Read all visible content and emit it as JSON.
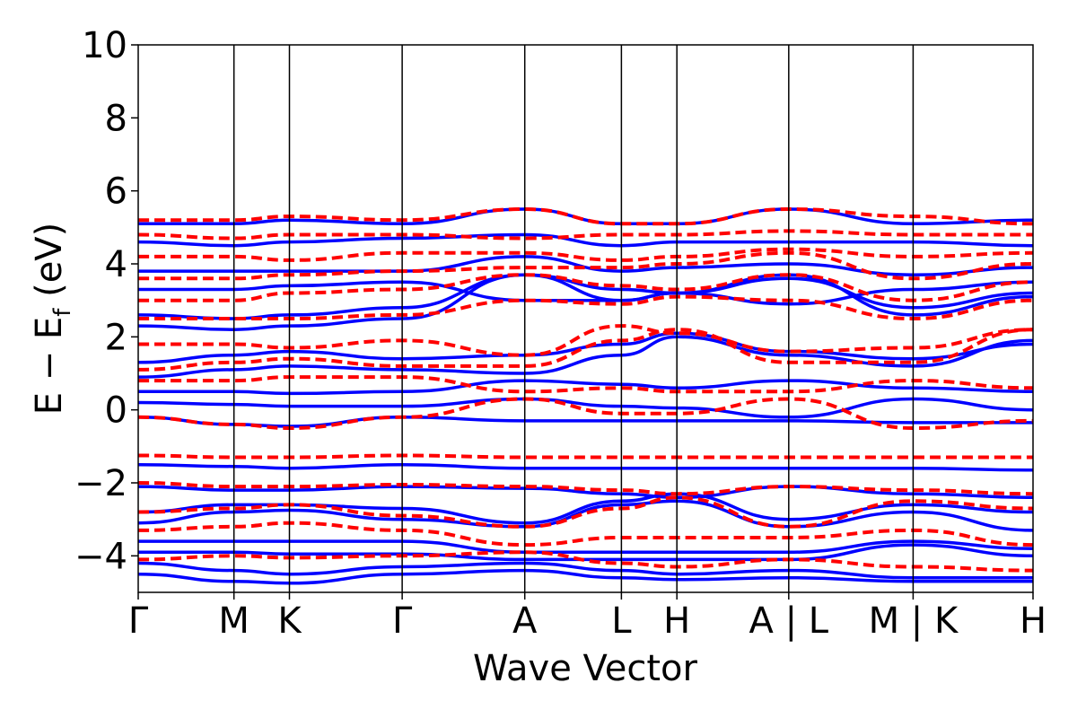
{
  "chart_data": {
    "type": "line",
    "title": "",
    "xlabel": "Wave Vector",
    "ylabel": {
      "main": "E − E",
      "sub": "f",
      "unit": " (eV)"
    },
    "ylim": [
      -5,
      10
    ],
    "yticks": [
      -4,
      -2,
      0,
      2,
      4,
      6,
      8,
      10
    ],
    "ytick_labels": [
      "−4",
      "−2",
      "0",
      "2",
      "4",
      "6",
      "8",
      "10"
    ],
    "xticks": [
      {
        "label": "Γ",
        "pos": 0.0
      },
      {
        "label": "M",
        "pos": 0.107
      },
      {
        "label": "K",
        "pos": 0.169
      },
      {
        "label": "Γ",
        "pos": 0.295
      },
      {
        "label": "A",
        "pos": 0.432
      },
      {
        "label": "L",
        "pos": 0.54
      },
      {
        "label": "H",
        "pos": 0.602
      },
      {
        "label": "A | L",
        "pos": 0.727
      },
      {
        "label": "M | K",
        "pos": 0.866
      },
      {
        "label": "H",
        "pos": 1.0
      }
    ],
    "grid": false,
    "legend": "none",
    "series_style": [
      {
        "color": "#0000ff",
        "dash": "solid"
      },
      {
        "color": "#ff0000",
        "dash": "dashed"
      }
    ],
    "series": [
      {
        "color": "#0000ff",
        "values": [
          -4.5,
          -4.7,
          -4.75,
          -4.5,
          -4.4,
          -4.6,
          -4.65,
          -4.6,
          -4.7,
          -4.7
        ]
      },
      {
        "color": "#0000ff",
        "values": [
          -4.2,
          -4.4,
          -4.5,
          -4.3,
          -4.2,
          -4.4,
          -4.5,
          -4.4,
          -4.6,
          -4.6
        ]
      },
      {
        "color": "#0000ff",
        "values": [
          -3.9,
          -3.9,
          -3.95,
          -3.95,
          -4.1,
          -4.1,
          -4.1,
          -4.1,
          -3.7,
          -4.0
        ]
      },
      {
        "color": "#0000ff",
        "values": [
          -3.6,
          -3.6,
          -3.6,
          -3.6,
          -3.9,
          -3.9,
          -3.9,
          -3.9,
          -3.6,
          -3.8
        ]
      },
      {
        "color": "#0000ff",
        "values": [
          -3.1,
          -2.8,
          -2.75,
          -3.0,
          -3.2,
          -2.6,
          -2.5,
          -3.2,
          -2.8,
          -3.3
        ]
      },
      {
        "color": "#0000ff",
        "values": [
          -2.8,
          -2.6,
          -2.6,
          -2.7,
          -3.1,
          -2.5,
          -2.3,
          -3.0,
          -2.6,
          -2.8
        ]
      },
      {
        "color": "#0000ff",
        "values": [
          -2.1,
          -2.2,
          -2.2,
          -2.1,
          -2.15,
          -2.3,
          -2.4,
          -2.1,
          -2.3,
          -2.4
        ]
      },
      {
        "color": "#0000ff",
        "values": [
          -1.5,
          -1.55,
          -1.6,
          -1.5,
          -1.6,
          -1.6,
          -1.6,
          -1.6,
          -1.6,
          -1.65
        ]
      },
      {
        "color": "#0000ff",
        "values": [
          -0.2,
          -0.4,
          -0.45,
          -0.2,
          -0.3,
          -0.3,
          -0.3,
          -0.3,
          -0.35,
          -0.35
        ]
      },
      {
        "color": "#0000ff",
        "values": [
          0.2,
          0.15,
          0.1,
          0.1,
          0.3,
          0.1,
          0.05,
          -0.2,
          0.3,
          0.0
        ]
      },
      {
        "color": "#0000ff",
        "values": [
          0.5,
          0.5,
          0.45,
          0.5,
          0.8,
          0.7,
          0.6,
          0.8,
          0.6,
          0.5
        ]
      },
      {
        "color": "#0000ff",
        "values": [
          0.9,
          1.1,
          1.2,
          1.1,
          1.0,
          1.5,
          2.0,
          1.5,
          1.2,
          1.9
        ]
      },
      {
        "color": "#0000ff",
        "values": [
          1.3,
          1.5,
          1.6,
          1.4,
          1.5,
          1.8,
          2.1,
          1.6,
          1.4,
          1.8
        ]
      },
      {
        "color": "#0000ff",
        "values": [
          2.3,
          2.2,
          2.3,
          2.5,
          3.7,
          3.0,
          3.2,
          3.7,
          2.6,
          3.1
        ]
      },
      {
        "color": "#0000ff",
        "values": [
          2.6,
          2.5,
          2.6,
          2.8,
          3.7,
          3.3,
          3.2,
          3.6,
          2.8,
          3.2
        ]
      },
      {
        "color": "#0000ff",
        "values": [
          3.3,
          3.3,
          3.4,
          3.5,
          3.0,
          3.0,
          3.2,
          2.9,
          3.3,
          3.5
        ]
      },
      {
        "color": "#0000ff",
        "values": [
          3.8,
          3.8,
          3.8,
          3.8,
          4.2,
          3.8,
          3.9,
          4.0,
          3.7,
          3.9
        ]
      },
      {
        "color": "#0000ff",
        "values": [
          4.6,
          4.5,
          4.6,
          4.7,
          4.8,
          4.5,
          4.6,
          4.6,
          4.6,
          4.5
        ]
      },
      {
        "color": "#0000ff",
        "values": [
          5.1,
          5.1,
          5.2,
          5.1,
          5.5,
          5.1,
          5.1,
          5.5,
          5.1,
          5.2
        ]
      },
      {
        "color": "#ff0000",
        "values": [
          -4.1,
          -4.0,
          -4.05,
          -4.0,
          -3.9,
          -4.2,
          -4.3,
          -4.1,
          -4.3,
          -4.4
        ]
      },
      {
        "color": "#ff0000",
        "values": [
          -3.3,
          -3.2,
          -3.1,
          -3.3,
          -3.7,
          -3.5,
          -3.5,
          -3.5,
          -3.3,
          -3.7
        ]
      },
      {
        "color": "#ff0000",
        "values": [
          -2.8,
          -2.7,
          -2.6,
          -2.9,
          -3.2,
          -2.7,
          -2.4,
          -3.2,
          -2.5,
          -2.7
        ]
      },
      {
        "color": "#ff0000",
        "values": [
          -2.0,
          -2.1,
          -2.1,
          -2.05,
          -2.1,
          -2.2,
          -2.3,
          -2.1,
          -2.2,
          -2.3
        ]
      },
      {
        "color": "#ff0000",
        "values": [
          -1.25,
          -1.3,
          -1.3,
          -1.25,
          -1.3,
          -1.3,
          -1.3,
          -1.3,
          -1.3,
          -1.3
        ]
      },
      {
        "color": "#ff0000",
        "values": [
          -0.2,
          -0.4,
          -0.5,
          -0.2,
          0.3,
          -0.1,
          -0.1,
          0.3,
          -0.5,
          -0.3
        ]
      },
      {
        "color": "#ff0000",
        "values": [
          0.8,
          0.8,
          0.9,
          0.9,
          0.5,
          0.6,
          0.5,
          0.5,
          0.8,
          0.6
        ]
      },
      {
        "color": "#ff0000",
        "values": [
          1.1,
          1.3,
          1.4,
          1.2,
          1.2,
          1.9,
          2.2,
          1.3,
          1.3,
          2.2
        ]
      },
      {
        "color": "#ff0000",
        "values": [
          1.8,
          1.8,
          1.7,
          1.9,
          1.5,
          2.3,
          2.1,
          1.6,
          1.7,
          2.2
        ]
      },
      {
        "color": "#ff0000",
        "values": [
          2.5,
          2.5,
          2.5,
          2.6,
          3.0,
          2.9,
          3.1,
          3.0,
          2.5,
          3.0
        ]
      },
      {
        "color": "#ff0000",
        "values": [
          3.0,
          3.0,
          3.2,
          3.3,
          3.7,
          3.4,
          3.3,
          3.7,
          3.0,
          3.5
        ]
      },
      {
        "color": "#ff0000",
        "values": [
          3.6,
          3.6,
          3.7,
          3.8,
          3.9,
          3.9,
          4.0,
          4.3,
          3.6,
          4.0
        ]
      },
      {
        "color": "#ff0000",
        "values": [
          4.2,
          4.2,
          4.1,
          4.3,
          4.3,
          4.1,
          4.2,
          4.4,
          4.2,
          4.3
        ]
      },
      {
        "color": "#ff0000",
        "values": [
          4.8,
          4.7,
          4.8,
          4.8,
          4.7,
          4.8,
          4.8,
          4.9,
          4.8,
          4.8
        ]
      },
      {
        "color": "#ff0000",
        "values": [
          5.2,
          5.2,
          5.3,
          5.2,
          5.5,
          5.1,
          5.1,
          5.5,
          5.3,
          5.1
        ]
      }
    ]
  }
}
